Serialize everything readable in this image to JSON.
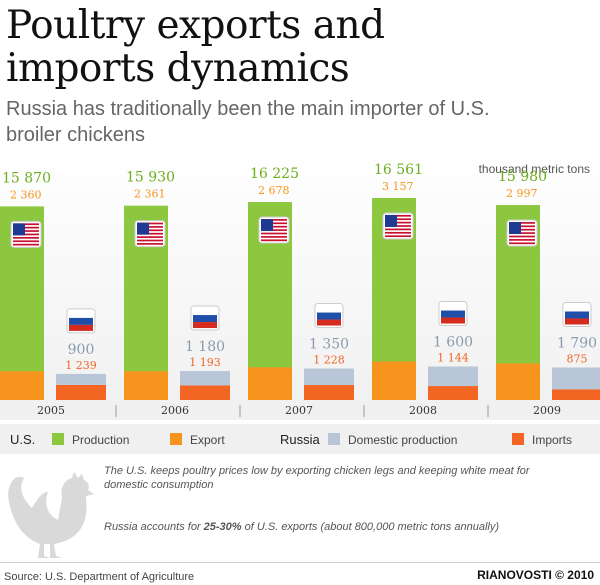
{
  "title": "Poultry exports and imports dynamics",
  "subtitle": "Russia has traditionally been the main importer of U.S. broiler chickens",
  "unit": "thousand metric tons",
  "legend": {
    "us": "U.S.",
    "production": "Production",
    "export": "Export",
    "russia": "Russia",
    "domestic_production": "Domestic production",
    "imports": "Imports"
  },
  "colors": {
    "production": "#8dc63f",
    "export": "#f7941d",
    "domestic_production": "#b8c6d8",
    "imports": "#f26522",
    "us_value_text": "#6cae1e",
    "export_value_text": "#f7941d",
    "domestic_value_text": "#8a9bb0",
    "imports_value_text": "#f26522"
  },
  "notes": {
    "line1": "The U.S. keeps poultry prices low by  exporting chicken legs and keeping white meat for",
    "line2": "domestic consumption",
    "line3_pre": "Russia accounts for ",
    "line3_bold": "25-30%",
    "line3_post": " of U.S. exports (about 800,000 metric tons annually)"
  },
  "source": "Source: U.S. Department of Agriculture",
  "brand": "RIANOVOSTI © 2010",
  "chart_data": {
    "type": "bar",
    "categories": [
      "2005",
      "2006",
      "2007",
      "2008",
      "2009"
    ],
    "series": [
      {
        "name": "Production",
        "values": [
          15870,
          15930,
          16225,
          16561,
          15980
        ],
        "labels": [
          "15 870",
          "15 930",
          "16 225",
          "16 561",
          "15 980"
        ]
      },
      {
        "name": "Export",
        "values": [
          2360,
          2361,
          2678,
          3157,
          2997
        ],
        "labels": [
          "2 360",
          "2 361",
          "2 678",
          "3 157",
          "2 997"
        ]
      },
      {
        "name": "Domestic production",
        "values": [
          900,
          1180,
          1350,
          1600,
          1790
        ],
        "labels": [
          "900",
          "1 180",
          "1 350",
          "1 600",
          "1 790"
        ]
      },
      {
        "name": "Imports",
        "values": [
          1239,
          1193,
          1228,
          1144,
          875
        ],
        "labels": [
          "1 239",
          "1 193",
          "1 228",
          "1 144",
          "875"
        ]
      }
    ]
  }
}
